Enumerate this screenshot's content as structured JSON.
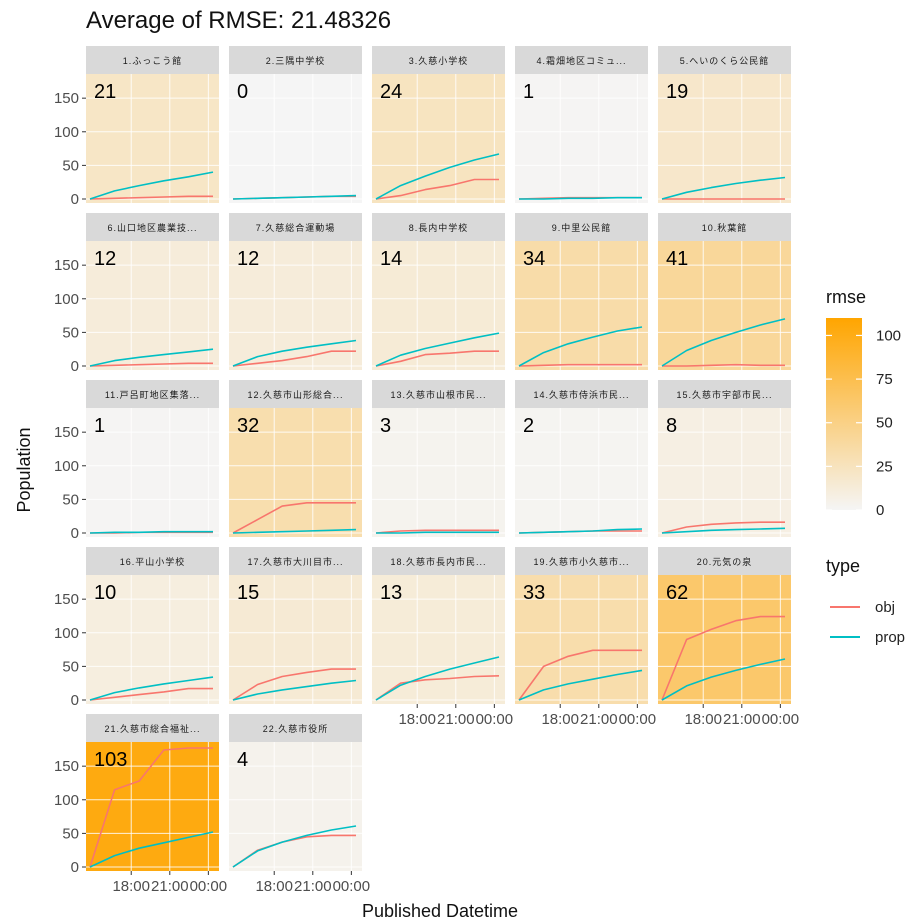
{
  "chart_data": {
    "type": "line",
    "title": "Average of RMSE: 21.48326",
    "xlabel": "Published Datetime",
    "ylabel": "Population",
    "x_ticks": [
      "18:00",
      "21:00",
      "00:00"
    ],
    "y_ticks": [
      0,
      50,
      100,
      150
    ],
    "ylim": [
      0,
      180
    ],
    "grid": true,
    "legend_placement": "right",
    "colors": {
      "obj": "#F8766D",
      "prop": "#00BFC4",
      "rmse_low": "#F5F5F5",
      "rmse_high": "#FFA500",
      "strip": "#D9D9D9",
      "gridline": "#FFFFFF"
    },
    "rmse_legend": {
      "title": "rmse",
      "ticks": [
        0,
        25,
        50,
        75,
        100
      ],
      "range": [
        0,
        110
      ]
    },
    "type_legend": {
      "title": "type",
      "items": [
        {
          "key": "obj",
          "label": "obj"
        },
        {
          "key": "prop",
          "label": "prop"
        }
      ]
    },
    "panels": [
      {
        "name": "1.ふっこう館",
        "rmse": 21,
        "series": [
          {
            "name": "obj",
            "values": [
              0,
              1,
              2,
              3,
              4,
              4
            ]
          },
          {
            "name": "prop",
            "values": [
              0,
              12,
              20,
              27,
              33,
              40
            ]
          }
        ]
      },
      {
        "name": "2.三隅中学校",
        "rmse": 0,
        "series": [
          {
            "name": "obj",
            "values": [
              0,
              1,
              2,
              3,
              4,
              4
            ]
          },
          {
            "name": "prop",
            "values": [
              0,
              1,
              2,
              3,
              4,
              5
            ]
          }
        ]
      },
      {
        "name": "3.久慈小学校",
        "rmse": 24,
        "series": [
          {
            "name": "obj",
            "values": [
              0,
              5,
              14,
              20,
              29,
              29
            ]
          },
          {
            "name": "prop",
            "values": [
              0,
              20,
              34,
              47,
              58,
              67
            ]
          }
        ]
      },
      {
        "name": "4.霜畑地区コミュ...",
        "rmse": 1,
        "series": [
          {
            "name": "obj",
            "values": [
              0,
              1,
              2,
              2,
              2,
              2
            ]
          },
          {
            "name": "prop",
            "values": [
              0,
              0,
              1,
              1,
              2,
              2
            ]
          }
        ]
      },
      {
        "name": "5.へいのくら公民館",
        "rmse": 19,
        "series": [
          {
            "name": "obj",
            "values": [
              0,
              0,
              0,
              0,
              0,
              0
            ]
          },
          {
            "name": "prop",
            "values": [
              0,
              10,
              17,
              23,
              28,
              32
            ]
          }
        ]
      },
      {
        "name": "6.山口地区農業技...",
        "rmse": 12,
        "series": [
          {
            "name": "obj",
            "values": [
              0,
              1,
              2,
              3,
              4,
              4
            ]
          },
          {
            "name": "prop",
            "values": [
              0,
              8,
              13,
              17,
              21,
              25
            ]
          }
        ]
      },
      {
        "name": "7.久慈総合運動場",
        "rmse": 12,
        "series": [
          {
            "name": "obj",
            "values": [
              0,
              4,
              8,
              14,
              22,
              22
            ]
          },
          {
            "name": "prop",
            "values": [
              0,
              14,
              22,
              28,
              33,
              38
            ]
          }
        ]
      },
      {
        "name": "8.長内中学校",
        "rmse": 14,
        "series": [
          {
            "name": "obj",
            "values": [
              0,
              7,
              17,
              19,
              22,
              22
            ]
          },
          {
            "name": "prop",
            "values": [
              0,
              16,
              26,
              34,
              42,
              49
            ]
          }
        ]
      },
      {
        "name": "9.中里公民館",
        "rmse": 34,
        "series": [
          {
            "name": "obj",
            "values": [
              0,
              1,
              2,
              2,
              2,
              2
            ]
          },
          {
            "name": "prop",
            "values": [
              0,
              20,
              33,
              43,
              52,
              58
            ]
          }
        ]
      },
      {
        "name": "10.秋葉館",
        "rmse": 41,
        "series": [
          {
            "name": "obj",
            "values": [
              0,
              0,
              1,
              2,
              1,
              1
            ]
          },
          {
            "name": "prop",
            "values": [
              0,
              23,
              38,
              50,
              61,
              70
            ]
          }
        ]
      },
      {
        "name": "11.戸呂町地区集落...",
        "rmse": 1,
        "series": [
          {
            "name": "obj",
            "values": [
              0,
              0,
              1,
              1,
              1,
              1
            ]
          },
          {
            "name": "prop",
            "values": [
              0,
              1,
              1,
              2,
              2,
              2
            ]
          }
        ]
      },
      {
        "name": "12.久慈市山形総合...",
        "rmse": 32,
        "series": [
          {
            "name": "obj",
            "values": [
              0,
              20,
              40,
              45,
              45,
              45
            ]
          },
          {
            "name": "prop",
            "values": [
              0,
              1,
              2,
              3,
              4,
              5
            ]
          }
        ]
      },
      {
        "name": "13.久慈市山根市民...",
        "rmse": 3,
        "series": [
          {
            "name": "obj",
            "values": [
              0,
              3,
              4,
              4,
              4,
              4
            ]
          },
          {
            "name": "prop",
            "values": [
              0,
              0,
              1,
              1,
              1,
              1
            ]
          }
        ]
      },
      {
        "name": "14.久慈市侍浜市民...",
        "rmse": 2,
        "series": [
          {
            "name": "obj",
            "values": [
              0,
              1,
              2,
              3,
              3,
              3
            ]
          },
          {
            "name": "prop",
            "values": [
              0,
              1,
              2,
              3,
              5,
              6
            ]
          }
        ]
      },
      {
        "name": "15.久慈市宇部市民...",
        "rmse": 8,
        "series": [
          {
            "name": "obj",
            "values": [
              0,
              9,
              13,
              15,
              16,
              16
            ]
          },
          {
            "name": "prop",
            "values": [
              0,
              2,
              4,
              5,
              6,
              7
            ]
          }
        ]
      },
      {
        "name": "16.平山小学校",
        "rmse": 10,
        "series": [
          {
            "name": "obj",
            "values": [
              0,
              4,
              8,
              12,
              17,
              17
            ]
          },
          {
            "name": "prop",
            "values": [
              0,
              11,
              18,
              24,
              29,
              34
            ]
          }
        ]
      },
      {
        "name": "17.久慈市大川目市...",
        "rmse": 15,
        "series": [
          {
            "name": "obj",
            "values": [
              0,
              23,
              35,
              41,
              46,
              46
            ]
          },
          {
            "name": "prop",
            "values": [
              0,
              9,
              15,
              20,
              25,
              29
            ]
          }
        ]
      },
      {
        "name": "18.久慈市長内市民...",
        "rmse": 13,
        "series": [
          {
            "name": "obj",
            "values": [
              0,
              25,
              30,
              32,
              35,
              36
            ]
          },
          {
            "name": "prop",
            "values": [
              0,
              22,
              35,
              46,
              55,
              64
            ]
          }
        ]
      },
      {
        "name": "19.久慈市小久慈市...",
        "rmse": 33,
        "series": [
          {
            "name": "obj",
            "values": [
              0,
              50,
              65,
              74,
              74,
              74
            ]
          },
          {
            "name": "prop",
            "values": [
              0,
              15,
              24,
              31,
              38,
              44
            ]
          }
        ]
      },
      {
        "name": "20.元気の泉",
        "rmse": 62,
        "series": [
          {
            "name": "obj",
            "values": [
              0,
              90,
              105,
              118,
              124,
              124
            ]
          },
          {
            "name": "prop",
            "values": [
              0,
              21,
              34,
              44,
              53,
              61
            ]
          }
        ]
      },
      {
        "name": "21.久慈市総合福祉...",
        "rmse": 103,
        "series": [
          {
            "name": "obj",
            "values": [
              0,
              115,
              128,
              174,
              177,
              177
            ]
          },
          {
            "name": "prop",
            "values": [
              0,
              17,
              28,
              36,
              44,
              52
            ]
          }
        ]
      },
      {
        "name": "22.久慈市役所",
        "rmse": 4,
        "series": [
          {
            "name": "obj",
            "values": [
              0,
              25,
              37,
              45,
              47,
              47
            ]
          },
          {
            "name": "prop",
            "values": [
              0,
              24,
              37,
              47,
              55,
              61
            ]
          }
        ]
      }
    ]
  }
}
